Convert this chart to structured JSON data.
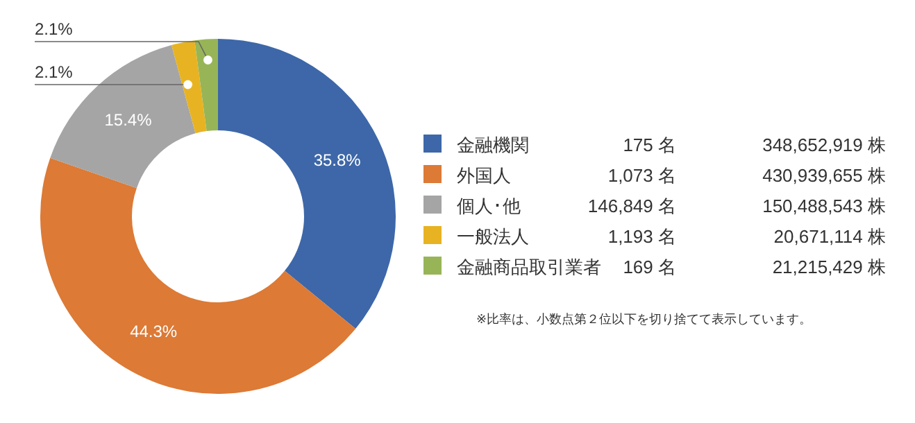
{
  "chart_data": {
    "type": "donut",
    "categories": [
      "金融機関",
      "外国人",
      "個人･他",
      "一般法人",
      "金融商品取引業者"
    ],
    "values": [
      35.8,
      44.3,
      15.4,
      2.1,
      2.1
    ],
    "value_labels": [
      "35.8%",
      "44.3%",
      "15.4%",
      "2.1%",
      "2.1%"
    ],
    "colors": [
      "#3d67a8",
      "#dc7a36",
      "#a5a5a5",
      "#e8b322",
      "#97b557"
    ],
    "legend": "right",
    "annotations": [
      "175 名",
      "348,652,919 株",
      "1,073 名",
      "430,939,655 株",
      "146,849 名",
      "150,488,543 株",
      "1,193 名",
      "20,671,114 株",
      "169 名",
      "21,215,429 株",
      "※比率は、小数点第２位以下を切り捨てて表示しています。"
    ]
  }
}
